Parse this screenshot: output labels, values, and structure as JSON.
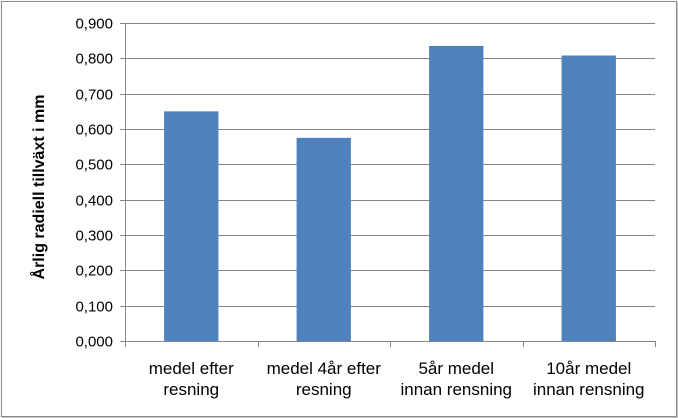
{
  "chart_data": {
    "type": "bar",
    "categories": [
      [
        "medel efter",
        "resning"
      ],
      [
        "medel 4år efter",
        "resning"
      ],
      [
        "5år medel",
        "innan rensning"
      ],
      [
        "10år medel",
        "innan rensning"
      ]
    ],
    "values": [
      0.65,
      0.575,
      0.835,
      0.808
    ],
    "title": "",
    "xlabel": "",
    "ylabel": "Årlig radiell tillväxt i mm",
    "ylim": [
      0,
      0.9
    ],
    "yticks": [
      0,
      0.1,
      0.2,
      0.3,
      0.4,
      0.5,
      0.6,
      0.7,
      0.8,
      0.9
    ],
    "ytick_labels": [
      "0,000",
      "0,100",
      "0,200",
      "0,300",
      "0,400",
      "0,500",
      "0,600",
      "0,700",
      "0,800",
      "0,900"
    ],
    "grid": true,
    "legend": "none",
    "colors": {
      "bar": "#4f81bd",
      "grid": "#868686",
      "axis": "#868686"
    }
  }
}
